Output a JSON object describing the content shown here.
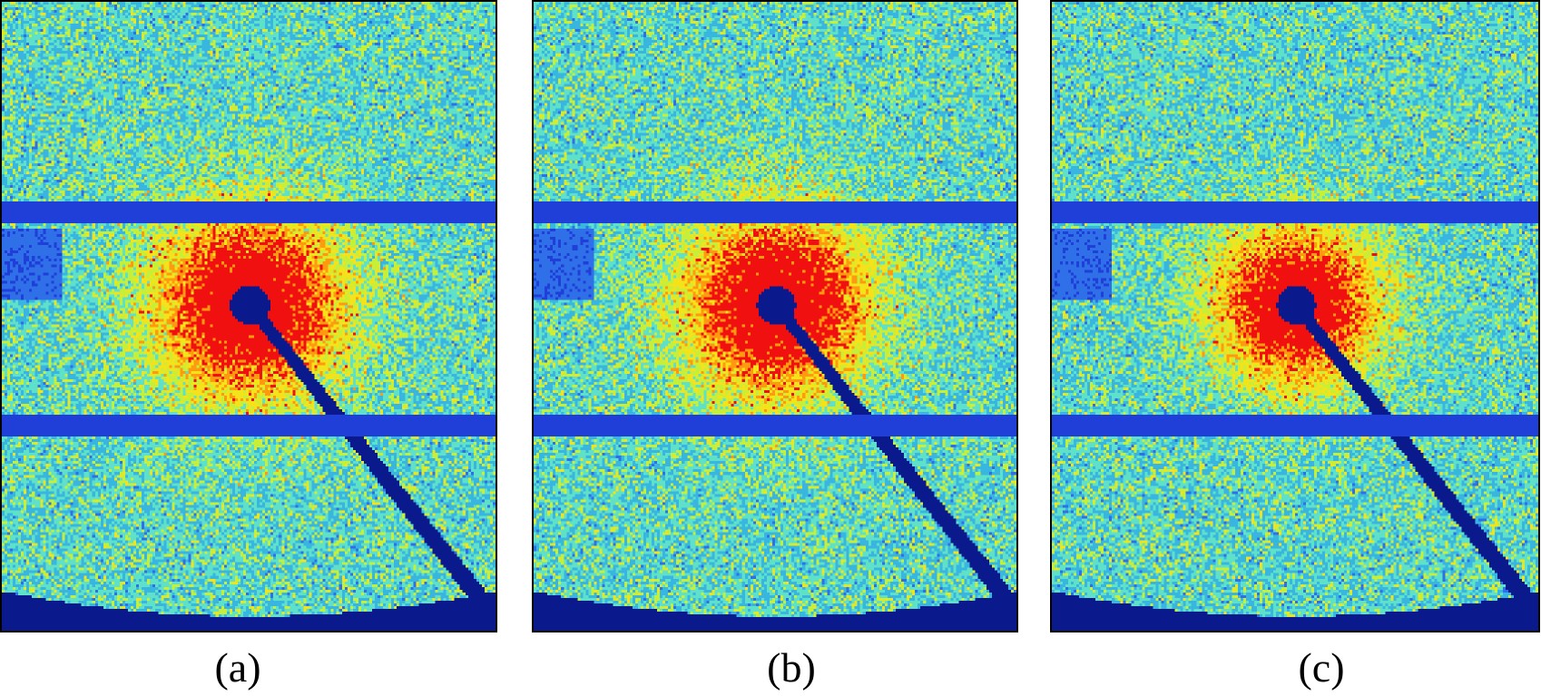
{
  "figure": {
    "panels": [
      {
        "id": "a",
        "caption": "(a)",
        "dark_patch": true,
        "intensity": 1.0
      },
      {
        "id": "b",
        "caption": "(b)",
        "dark_patch": true,
        "intensity": 1.0
      },
      {
        "id": "c",
        "caption": "(c)",
        "dark_patch": true,
        "intensity": 0.85
      }
    ],
    "colormap": [
      "#0a1a8c",
      "#1f3fd8",
      "#2f6fe8",
      "#39b6e0",
      "#5fe0c8",
      "#c6ef3a",
      "#f4e21a",
      "#ff9a10",
      "#f01010"
    ]
  }
}
